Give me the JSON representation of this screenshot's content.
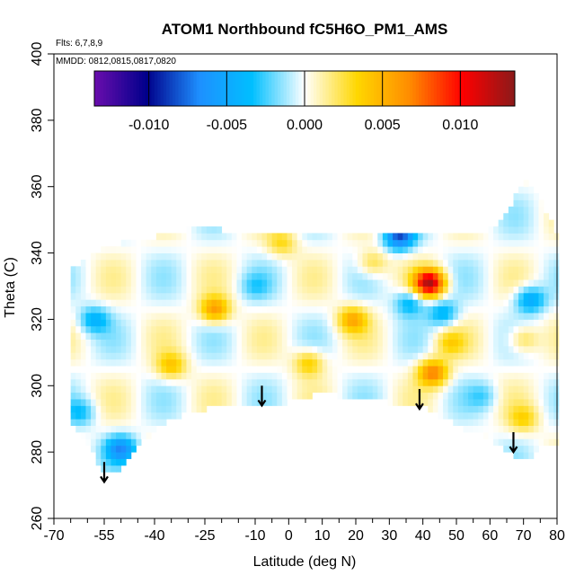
{
  "chart_data": {
    "type": "heatmap",
    "title": "ATOM1 Northbound fC5H6O_PM1_AMS",
    "flights_note": "Flts: 6,7,8,9",
    "dates_note": "MMDD: 0812,0815,0817,0820",
    "xlabel": "Latitude (deg N)",
    "ylabel": "Theta (C)",
    "xlim": [
      -70,
      80
    ],
    "ylim": [
      260,
      400
    ],
    "x_ticks": [
      -70,
      -55,
      -40,
      -25,
      -10,
      0,
      10,
      20,
      30,
      40,
      50,
      60,
      70,
      80
    ],
    "x_tick_labels": [
      "-70",
      "-55",
      "-40",
      "-25",
      "-10",
      "0",
      "10",
      "20",
      "30",
      "40",
      "50",
      "60",
      "70",
      "80"
    ],
    "y_ticks": [
      260,
      280,
      300,
      320,
      340,
      360,
      380,
      400
    ],
    "y_tick_labels": [
      "260",
      "280",
      "300",
      "320",
      "340",
      "360",
      "380",
      "400"
    ],
    "colorbar": {
      "range": [
        -0.0135,
        0.0135
      ],
      "ticks": [
        -0.01,
        -0.005,
        0.0,
        0.005,
        0.01
      ],
      "tick_labels": [
        "-0.010",
        "-0.005",
        "0.000",
        "0.005",
        "0.010"
      ],
      "colors": [
        "#6a0dad",
        "#00008b",
        "#1e90ff",
        "#00bfff",
        "#ffffff",
        "#ffd700",
        "#ff8c00",
        "#ff0000",
        "#8b1a1a"
      ]
    },
    "coverage": {
      "top_theta": [
        [
          -63,
          336
        ],
        [
          -58,
          340
        ],
        [
          -50,
          343
        ],
        [
          -40,
          345
        ],
        [
          -30,
          347
        ],
        [
          -20,
          347
        ],
        [
          -10,
          346
        ],
        [
          0,
          345
        ],
        [
          10,
          346
        ],
        [
          20,
          347
        ],
        [
          30,
          346
        ],
        [
          40,
          345
        ],
        [
          50,
          346
        ],
        [
          60,
          347
        ],
        [
          65,
          352
        ],
        [
          70,
          362
        ],
        [
          75,
          357
        ],
        [
          80,
          345
        ]
      ],
      "bottom_theta": [
        [
          -65,
          288
        ],
        [
          -60,
          283
        ],
        [
          -56,
          274
        ],
        [
          -50,
          275
        ],
        [
          -45,
          281
        ],
        [
          -40,
          287
        ],
        [
          -30,
          292
        ],
        [
          -20,
          294
        ],
        [
          -10,
          295
        ],
        [
          0,
          295
        ],
        [
          10,
          298
        ],
        [
          20,
          296
        ],
        [
          30,
          295
        ],
        [
          35,
          294
        ],
        [
          40,
          294
        ],
        [
          50,
          288
        ],
        [
          60,
          284
        ],
        [
          68,
          278
        ],
        [
          72,
          277
        ],
        [
          75,
          281
        ],
        [
          80,
          283
        ]
      ]
    },
    "anomalies": [
      {
        "lat": -22,
        "theta": 323,
        "value": 0.006
      },
      {
        "lat": -35,
        "theta": 306,
        "value": 0.004
      },
      {
        "lat": -58,
        "theta": 320,
        "value": -0.004
      },
      {
        "lat": -50,
        "theta": 281,
        "value": -0.006
      },
      {
        "lat": -62,
        "theta": 292,
        "value": -0.003
      },
      {
        "lat": 19,
        "theta": 320,
        "value": 0.005
      },
      {
        "lat": 6,
        "theta": 307,
        "value": 0.004
      },
      {
        "lat": 43,
        "theta": 304,
        "value": 0.007
      },
      {
        "lat": 42,
        "theta": 331,
        "value": 0.012
      },
      {
        "lat": 33,
        "theta": 345,
        "value": -0.008
      },
      {
        "lat": 36,
        "theta": 325,
        "value": -0.004
      },
      {
        "lat": 46,
        "theta": 322,
        "value": -0.004
      },
      {
        "lat": 72,
        "theta": 326,
        "value": -0.005
      },
      {
        "lat": 70,
        "theta": 314,
        "value": 0.003
      },
      {
        "lat": 48,
        "theta": 313,
        "value": 0.003
      },
      {
        "lat": -2,
        "theta": 343,
        "value": 0.003
      },
      {
        "lat": 25,
        "theta": 337,
        "value": 0.003
      },
      {
        "lat": 70,
        "theta": 290,
        "value": 0.003
      },
      {
        "lat": -10,
        "theta": 330,
        "value": -0.002
      },
      {
        "lat": 58,
        "theta": 297,
        "value": -0.002
      }
    ],
    "arrows": [
      {
        "lat": -55,
        "theta_top": 277,
        "theta_tip": 271
      },
      {
        "lat": -8,
        "theta_top": 300,
        "theta_tip": 294
      },
      {
        "lat": 39,
        "theta_top": 299,
        "theta_tip": 293
      },
      {
        "lat": 67,
        "theta_top": 286,
        "theta_tip": 280
      }
    ]
  }
}
